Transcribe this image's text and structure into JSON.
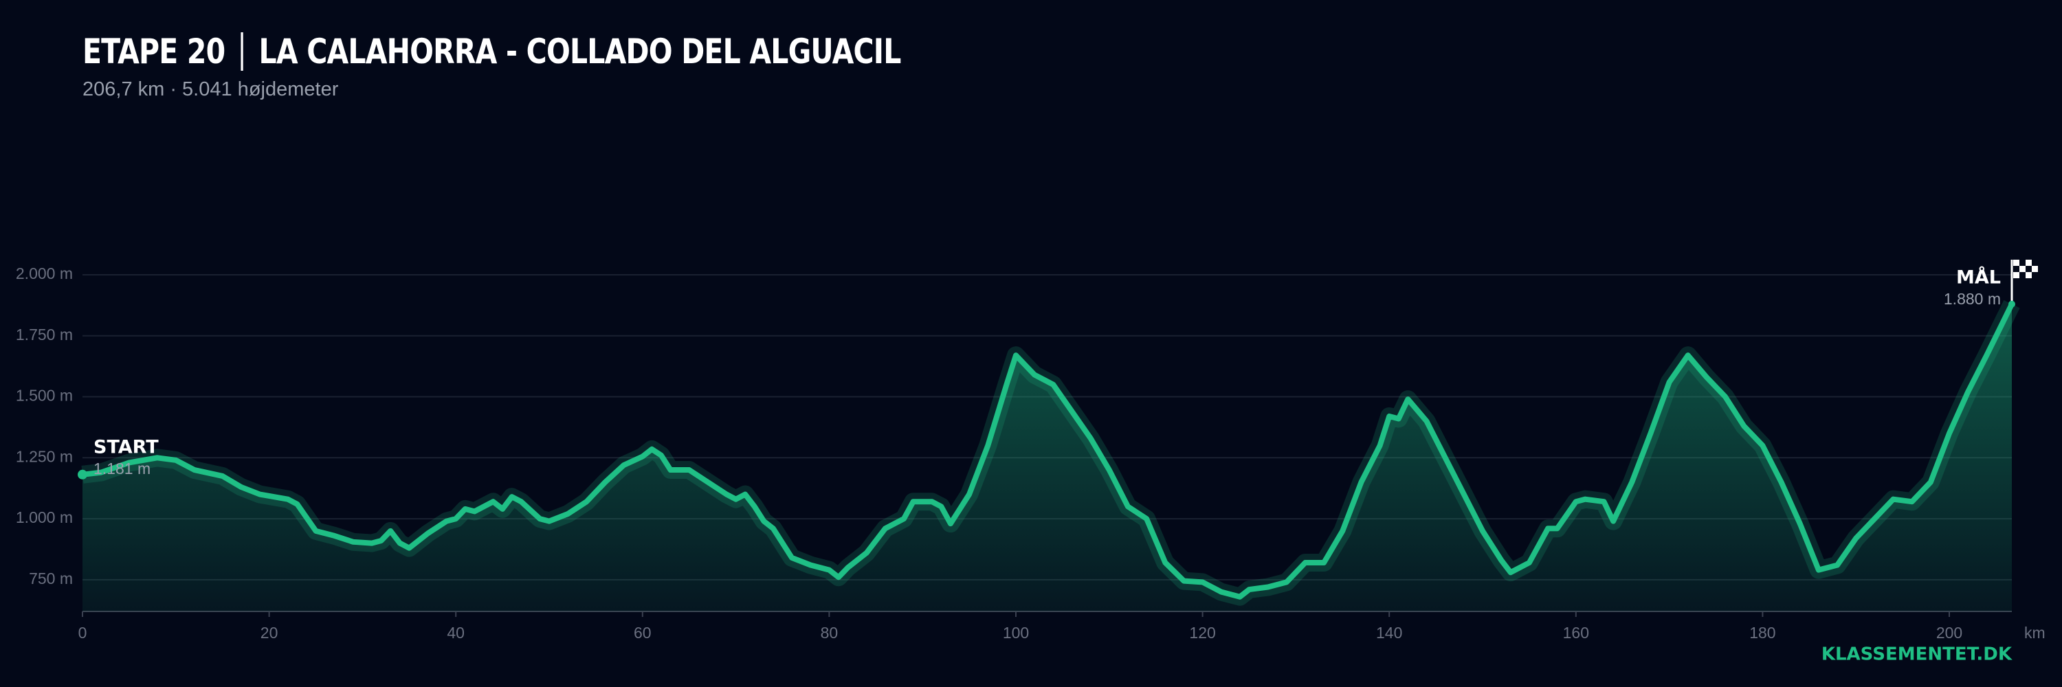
{
  "chart_data": {
    "type": "area",
    "stage": "ETAPE 20",
    "title": "LA CALAHORRA - COLLADO DEL ALGUACIL",
    "subtitle": "206,7 km  ·  5.041 højdemeter",
    "x_label": "km",
    "brand": "KLASSEMENTET.DK",
    "color": "#1fbf85",
    "grid": true,
    "x": [
      0,
      2,
      5,
      8,
      10,
      12,
      15,
      17,
      19,
      22,
      23,
      25,
      27,
      29,
      31,
      32,
      33,
      34,
      35,
      37,
      39,
      40,
      41,
      42,
      44,
      45,
      46,
      47,
      49,
      50,
      52,
      54,
      56,
      58,
      60,
      61,
      62,
      63,
      65,
      67,
      69,
      70,
      71,
      72,
      73,
      74,
      76,
      78,
      80,
      81,
      82,
      84,
      86,
      88,
      89,
      91,
      92,
      93,
      95,
      97,
      99,
      100,
      102,
      104,
      106,
      108,
      110,
      112,
      114,
      116,
      118,
      120,
      122,
      124,
      125,
      127,
      129,
      131,
      133,
      135,
      137,
      139,
      140,
      141,
      142,
      144,
      146,
      148,
      150,
      152,
      153,
      155,
      157,
      158,
      160,
      161,
      163,
      164,
      166,
      168,
      170,
      172,
      174,
      176,
      178,
      180,
      182,
      184,
      186,
      188,
      190,
      192,
      194,
      196,
      198,
      200,
      202,
      204,
      206.7
    ],
    "values": [
      1181,
      1190,
      1230,
      1250,
      1240,
      1200,
      1175,
      1130,
      1100,
      1080,
      1060,
      950,
      930,
      905,
      900,
      910,
      950,
      900,
      880,
      940,
      990,
      1000,
      1040,
      1030,
      1070,
      1040,
      1090,
      1070,
      1000,
      990,
      1020,
      1070,
      1150,
      1220,
      1255,
      1285,
      1260,
      1200,
      1200,
      1150,
      1100,
      1080,
      1100,
      1050,
      990,
      960,
      840,
      810,
      790,
      760,
      800,
      860,
      960,
      1000,
      1070,
      1070,
      1050,
      980,
      1100,
      1300,
      1550,
      1670,
      1590,
      1550,
      1440,
      1330,
      1200,
      1050,
      1000,
      820,
      745,
      740,
      700,
      680,
      710,
      720,
      740,
      820,
      820,
      950,
      1150,
      1300,
      1420,
      1410,
      1490,
      1400,
      1250,
      1100,
      950,
      830,
      780,
      820,
      960,
      960,
      1070,
      1080,
      1070,
      990,
      1150,
      1350,
      1560,
      1670,
      1580,
      1500,
      1380,
      1300,
      1150,
      980,
      790,
      810,
      920,
      1000,
      1080,
      1070,
      1150,
      1350,
      1520,
      1670,
      1880
    ],
    "xlim": [
      0,
      206.7
    ],
    "ylim": [
      620,
      2000
    ],
    "xticks": [
      0,
      20,
      40,
      60,
      80,
      100,
      120,
      140,
      160,
      180,
      200
    ],
    "yticks": [
      {
        "value": 750,
        "label": "750 m"
      },
      {
        "value": 1000,
        "label": "1.000 m"
      },
      {
        "value": 1250,
        "label": "1.250 m"
      },
      {
        "value": 1500,
        "label": "1.500 m"
      },
      {
        "value": 1750,
        "label": "1.750 m"
      },
      {
        "value": 2000,
        "label": "2.000 m"
      }
    ],
    "annotations": [
      {
        "label": "START",
        "x": 0,
        "y": 1181,
        "value_label": "1.181 m"
      },
      {
        "label": "MÅL",
        "x": 206.7,
        "y": 1880,
        "value_label": "1.880 m"
      }
    ]
  }
}
